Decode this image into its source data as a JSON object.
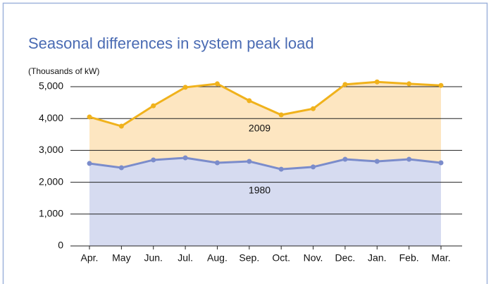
{
  "chart_data": {
    "type": "line",
    "title": "Seasonal differences in system peak load",
    "y_axis_label": "(Thousands of kW)",
    "categories": [
      "Apr.",
      "May",
      "Jun.",
      "Jul.",
      "Aug.",
      "Sep.",
      "Oct.",
      "Nov.",
      "Dec.",
      "Jan.",
      "Feb.",
      "Mar."
    ],
    "series": [
      {
        "name": "2009",
        "color": "#f0b21c",
        "fill": "#fde6c1",
        "values": [
          4050,
          3760,
          4400,
          4980,
          5090,
          4560,
          4115,
          4310,
          5070,
          5150,
          5090,
          5040
        ]
      },
      {
        "name": "1980",
        "color": "#7b8ccb",
        "fill": "#d6dbf0",
        "values": [
          2590,
          2455,
          2700,
          2765,
          2610,
          2655,
          2410,
          2480,
          2720,
          2655,
          2720,
          2610
        ]
      }
    ],
    "ylim": [
      0,
      5000
    ],
    "yticks": [
      0,
      {
        "value": 1000,
        "label": "1,000"
      },
      {
        "value": 2000,
        "label": "2,000"
      },
      {
        "value": 3000,
        "label": "3,000"
      },
      {
        "value": 4000,
        "label": "4,000"
      },
      {
        "value": 5000,
        "label": "5,000"
      }
    ],
    "grid": true
  }
}
